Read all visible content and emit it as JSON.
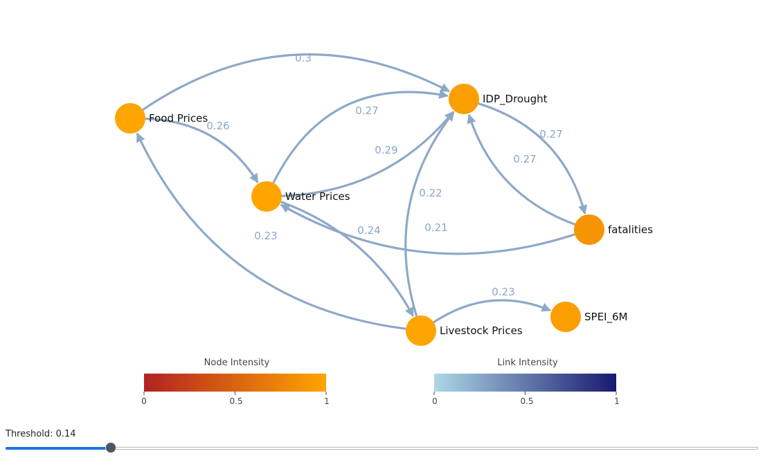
{
  "graph": {
    "nodes": [
      {
        "id": "food",
        "label": "Food Prices",
        "intensity": 1.0
      },
      {
        "id": "water",
        "label": "Water Prices",
        "intensity": 1.0
      },
      {
        "id": "idp",
        "label": "IDP_Drought",
        "intensity": 0.95
      },
      {
        "id": "fatal",
        "label": "fatalities",
        "intensity": 0.88
      },
      {
        "id": "livestock",
        "label": "Livestock Prices",
        "intensity": 1.0
      },
      {
        "id": "spei",
        "label": "SPEI_6M",
        "intensity": 0.95
      }
    ],
    "edges": [
      {
        "source": "food",
        "target": "idp",
        "weight": 0.3,
        "label": "0.3"
      },
      {
        "source": "food",
        "target": "water",
        "weight": 0.26,
        "label": "0.26"
      },
      {
        "source": "water",
        "target": "idp",
        "weight": 0.27,
        "label": "0.27"
      },
      {
        "source": "water",
        "target": "idp",
        "weight": 0.29,
        "label": "0.29"
      },
      {
        "source": "idp",
        "target": "fatal",
        "weight": 0.27,
        "label": "0.27"
      },
      {
        "source": "fatal",
        "target": "idp",
        "weight": 0.27,
        "label": "0.27"
      },
      {
        "source": "livestock",
        "target": "idp",
        "weight": 0.22,
        "label": "0.22"
      },
      {
        "source": "water",
        "target": "livestock",
        "weight": 0.24,
        "label": "0.24"
      },
      {
        "source": "fatal",
        "target": "water",
        "weight": 0.21,
        "label": "0.21"
      },
      {
        "source": "livestock",
        "target": "food",
        "weight": 0.23,
        "label": "0.23"
      },
      {
        "source": "livestock",
        "target": "spei",
        "weight": 0.23,
        "label": "0.23"
      }
    ]
  },
  "legends": {
    "node": {
      "title": "Node Intensity",
      "ticks": [
        "0",
        "0.5",
        "1"
      ],
      "colors": [
        "#b22222",
        "#ffa500"
      ]
    },
    "link": {
      "title": "Link Intensity",
      "ticks": [
        "0",
        "0.5",
        "1"
      ],
      "colors": [
        "#add8e6",
        "#191970"
      ]
    }
  },
  "threshold": {
    "label": "Threshold: 0.14",
    "value": 0.14
  }
}
